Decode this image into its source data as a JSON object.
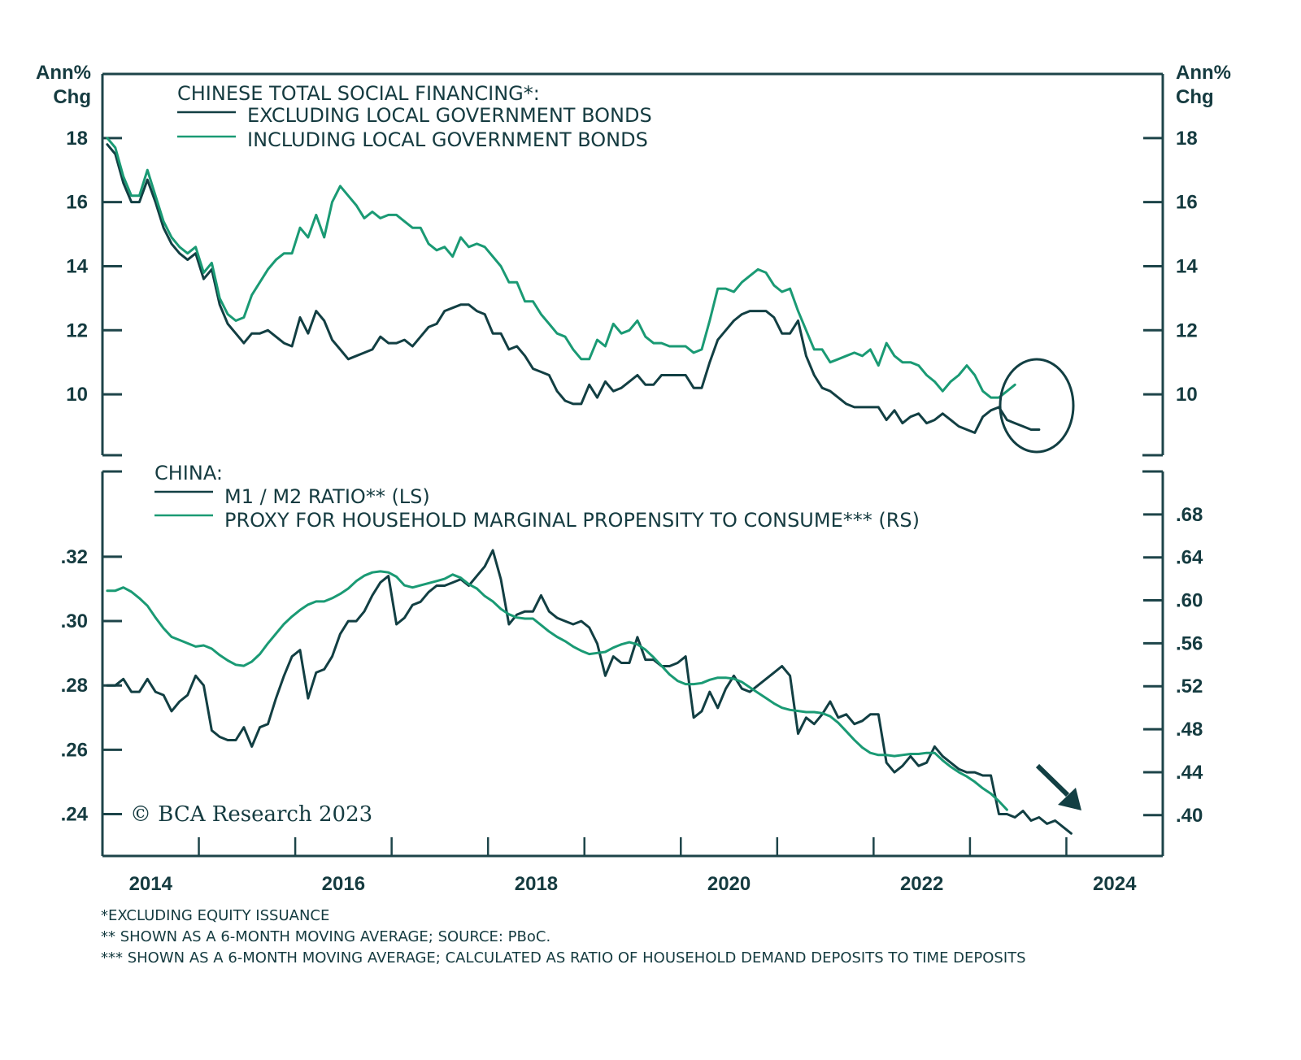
{
  "chart_data": [
    {
      "type": "line",
      "title": "CHINESE TOTAL SOCIAL FINANCING*:",
      "ylabel_left": "Ann% Chg",
      "ylabel_right": "Ann% Chg",
      "ylim": [
        8.1,
        20.0
      ],
      "yticks": [
        10,
        12,
        14,
        16,
        18
      ],
      "ytick_labels": [
        "10",
        "12",
        "14",
        "16",
        "18"
      ],
      "x_start": 2014.0,
      "x_step_months": 1,
      "legend": [
        "EXCLUDING LOCAL GOVERNMENT BONDS",
        "INCLUDING LOCAL GOVERNMENT BONDS"
      ],
      "legend_placement": "top-left",
      "annotation": "circle highlighting latest readings (2023)",
      "series": [
        {
          "name": "EXCLUDING LOCAL GOVERNMENT BONDS",
          "color": "#123f43",
          "values": [
            17.8,
            17.5,
            16.6,
            16.0,
            16.0,
            16.7,
            16.0,
            15.2,
            14.7,
            14.4,
            14.2,
            14.4,
            13.6,
            13.9,
            12.8,
            12.2,
            11.9,
            11.6,
            11.9,
            11.9,
            12.0,
            11.8,
            11.6,
            11.5,
            12.4,
            11.9,
            12.6,
            12.3,
            11.7,
            11.4,
            11.1,
            11.2,
            11.3,
            11.4,
            11.8,
            11.6,
            11.6,
            11.7,
            11.5,
            11.8,
            12.1,
            12.2,
            12.6,
            12.7,
            12.8,
            12.8,
            12.6,
            12.5,
            11.9,
            11.9,
            11.4,
            11.5,
            11.2,
            10.8,
            10.7,
            10.6,
            10.1,
            9.8,
            9.7,
            9.7,
            10.3,
            9.9,
            10.4,
            10.1,
            10.2,
            10.4,
            10.6,
            10.3,
            10.3,
            10.6,
            10.6,
            10.6,
            10.6,
            10.2,
            10.2,
            11.0,
            11.7,
            12.0,
            12.3,
            12.5,
            12.6,
            12.6,
            12.6,
            12.4,
            11.9,
            11.9,
            12.3,
            11.2,
            10.6,
            10.2,
            10.1,
            9.9,
            9.7,
            9.6,
            9.6,
            9.6,
            9.6,
            9.2,
            9.5,
            9.1,
            9.3,
            9.4,
            9.1,
            9.2,
            9.4,
            9.2,
            9.0,
            8.9,
            8.8,
            9.3,
            9.5,
            9.6,
            9.2,
            9.1,
            9.0,
            8.9,
            8.9
          ]
        },
        {
          "name": "INCLUDING LOCAL GOVERNMENT BONDS",
          "color": "#1a9a74",
          "values": [
            18.0,
            17.7,
            16.8,
            16.2,
            16.2,
            17.0,
            16.2,
            15.4,
            14.9,
            14.6,
            14.4,
            14.6,
            13.8,
            14.1,
            13.0,
            12.5,
            12.3,
            12.4,
            13.1,
            13.5,
            13.9,
            14.2,
            14.4,
            14.4,
            15.2,
            14.9,
            15.6,
            14.9,
            16.0,
            16.5,
            16.2,
            15.9,
            15.5,
            15.7,
            15.5,
            15.6,
            15.6,
            15.4,
            15.2,
            15.2,
            14.7,
            14.5,
            14.6,
            14.3,
            14.9,
            14.6,
            14.7,
            14.6,
            14.3,
            14.0,
            13.5,
            13.5,
            12.9,
            12.9,
            12.5,
            12.2,
            11.9,
            11.8,
            11.4,
            11.1,
            11.1,
            11.7,
            11.5,
            12.2,
            11.9,
            12.0,
            12.3,
            11.8,
            11.6,
            11.6,
            11.5,
            11.5,
            11.5,
            11.3,
            11.4,
            12.3,
            13.3,
            13.3,
            13.2,
            13.5,
            13.7,
            13.9,
            13.8,
            13.4,
            13.2,
            13.3,
            12.6,
            12.0,
            11.4,
            11.4,
            11.0,
            11.1,
            11.2,
            11.3,
            11.2,
            11.4,
            10.9,
            11.6,
            11.2,
            11.0,
            11.0,
            10.9,
            10.6,
            10.4,
            10.1,
            10.4,
            10.6,
            10.9,
            10.6,
            10.1,
            9.9,
            9.9,
            10.1,
            10.3
          ]
        }
      ]
    },
    {
      "type": "line",
      "title": "CHINA:",
      "ylim_left": [
        0.227,
        0.3465
      ],
      "yticks_left": [
        0.24,
        0.26,
        0.28,
        0.3,
        0.32
      ],
      "ytick_labels_left": [
        ".24",
        ".26",
        ".28",
        ".30",
        ".32"
      ],
      "ylim_right": [
        0.362,
        0.72
      ],
      "yticks_right": [
        0.4,
        0.44,
        0.48,
        0.52,
        0.56,
        0.6,
        0.64,
        0.68
      ],
      "ytick_labels_right": [
        ".40",
        ".44",
        ".48",
        ".52",
        ".56",
        ".60",
        ".64",
        ".68"
      ],
      "x_start": 2014.0,
      "x_step_months": 1,
      "legend": [
        "M1 / M2 RATIO** (LS)",
        "PROXY FOR HOUSEHOLD MARGINAL PROPENSITY TO CONSUME*** (RS)"
      ],
      "legend_placement": "top-left",
      "annotation": "downward arrow at end of series",
      "series": [
        {
          "name": "M1 / M2 RATIO** (LS)",
          "axis": "left",
          "color": "#123f43",
          "values": [
            0.28,
            0.28,
            0.282,
            0.278,
            0.278,
            0.282,
            0.278,
            0.277,
            0.272,
            0.275,
            0.277,
            0.283,
            0.28,
            0.266,
            0.264,
            0.263,
            0.263,
            0.267,
            0.261,
            0.267,
            0.268,
            0.276,
            0.283,
            0.289,
            0.291,
            0.276,
            0.284,
            0.285,
            0.289,
            0.296,
            0.3,
            0.3,
            0.303,
            0.308,
            0.312,
            0.314,
            0.299,
            0.301,
            0.305,
            0.306,
            0.309,
            0.311,
            0.311,
            0.312,
            0.313,
            0.311,
            0.314,
            0.317,
            0.322,
            0.313,
            0.299,
            0.302,
            0.303,
            0.303,
            0.308,
            0.303,
            0.301,
            0.3,
            0.299,
            0.3,
            0.298,
            0.293,
            0.283,
            0.289,
            0.287,
            0.287,
            0.295,
            0.288,
            0.288,
            0.286,
            0.286,
            0.287,
            0.289,
            0.27,
            0.272,
            0.278,
            0.273,
            0.279,
            0.283,
            0.279,
            0.278,
            0.28,
            0.282,
            0.284,
            0.286,
            0.283,
            0.265,
            0.27,
            0.268,
            0.271,
            0.275,
            0.27,
            0.271,
            0.268,
            0.269,
            0.271,
            0.271,
            0.256,
            0.253,
            0.255,
            0.258,
            0.255,
            0.256,
            0.261,
            0.258,
            0.256,
            0.254,
            0.253,
            0.253,
            0.252,
            0.252,
            0.24,
            0.24,
            0.239,
            0.241,
            0.238,
            0.239,
            0.237,
            0.238,
            0.236,
            0.234
          ]
        },
        {
          "name": "PROXY FOR HOUSEHOLD MARGINAL PROPENSITY TO CONSUME*** (RS)",
          "axis": "right",
          "color": "#1a9a74",
          "values": [
            0.609,
            0.609,
            0.612,
            0.608,
            0.602,
            0.595,
            0.584,
            0.574,
            0.566,
            0.563,
            0.56,
            0.557,
            0.558,
            0.555,
            0.549,
            0.544,
            0.54,
            0.539,
            0.543,
            0.55,
            0.56,
            0.569,
            0.578,
            0.585,
            0.591,
            0.596,
            0.599,
            0.599,
            0.602,
            0.606,
            0.611,
            0.618,
            0.623,
            0.626,
            0.627,
            0.626,
            0.622,
            0.614,
            0.612,
            0.614,
            0.616,
            0.618,
            0.62,
            0.624,
            0.621,
            0.615,
            0.611,
            0.604,
            0.599,
            0.592,
            0.587,
            0.584,
            0.583,
            0.583,
            0.577,
            0.571,
            0.566,
            0.562,
            0.557,
            0.553,
            0.55,
            0.551,
            0.552,
            0.556,
            0.559,
            0.561,
            0.559,
            0.554,
            0.547,
            0.539,
            0.531,
            0.525,
            0.522,
            0.522,
            0.523,
            0.526,
            0.528,
            0.528,
            0.527,
            0.524,
            0.519,
            0.514,
            0.509,
            0.504,
            0.5,
            0.498,
            0.497,
            0.496,
            0.496,
            0.495,
            0.492,
            0.486,
            0.478,
            0.47,
            0.463,
            0.458,
            0.456,
            0.456,
            0.455,
            0.456,
            0.457,
            0.457,
            0.458,
            0.458,
            0.451,
            0.445,
            0.44,
            0.436,
            0.431,
            0.425,
            0.42,
            0.413,
            0.405
          ]
        }
      ]
    }
  ],
  "x_axis": {
    "range": [
      2014.0,
      2025.0
    ],
    "minor_ticks": [
      2015,
      2016,
      2017,
      2018,
      2019,
      2020,
      2021,
      2022,
      2023,
      2024
    ],
    "labels": [
      {
        "text": "2014",
        "at": 2014.5
      },
      {
        "text": "2016",
        "at": 2016.5
      },
      {
        "text": "2018",
        "at": 2018.5
      },
      {
        "text": "2020",
        "at": 2020.5
      },
      {
        "text": "2022",
        "at": 2022.5
      },
      {
        "text": "2024",
        "at": 2024.5
      }
    ]
  },
  "top_panel": {
    "unit_left_line1": "Ann%",
    "unit_left_line2": "Chg",
    "unit_right_line1": "Ann%",
    "unit_right_line2": "Chg",
    "legend_title": "CHINESE TOTAL SOCIAL FINANCING*:",
    "legend_items": [
      "EXCLUDING LOCAL GOVERNMENT BONDS",
      "INCLUDING LOCAL GOVERNMENT BONDS"
    ]
  },
  "bottom_panel": {
    "legend_title": "CHINA:",
    "legend_items": [
      "M1 / M2 RATIO** (LS)",
      "PROXY FOR HOUSEHOLD MARGINAL PROPENSITY TO CONSUME*** (RS)"
    ]
  },
  "copyright": "© BCA Research 2023",
  "footnotes": [
    "*EXCLUDING EQUITY ISSUANCE",
    "** SHOWN AS A 6-MONTH MOVING AVERAGE; SOURCE: PBoC.",
    "*** SHOWN AS A 6-MONTH MOVING AVERAGE; CALCULATED AS RATIO OF HOUSEHOLD DEMAND DEPOSITS TO TIME DEPOSITS"
  ],
  "colors": {
    "dark": "#123f43",
    "green": "#1a9a74",
    "axis": "#1d4449"
  }
}
